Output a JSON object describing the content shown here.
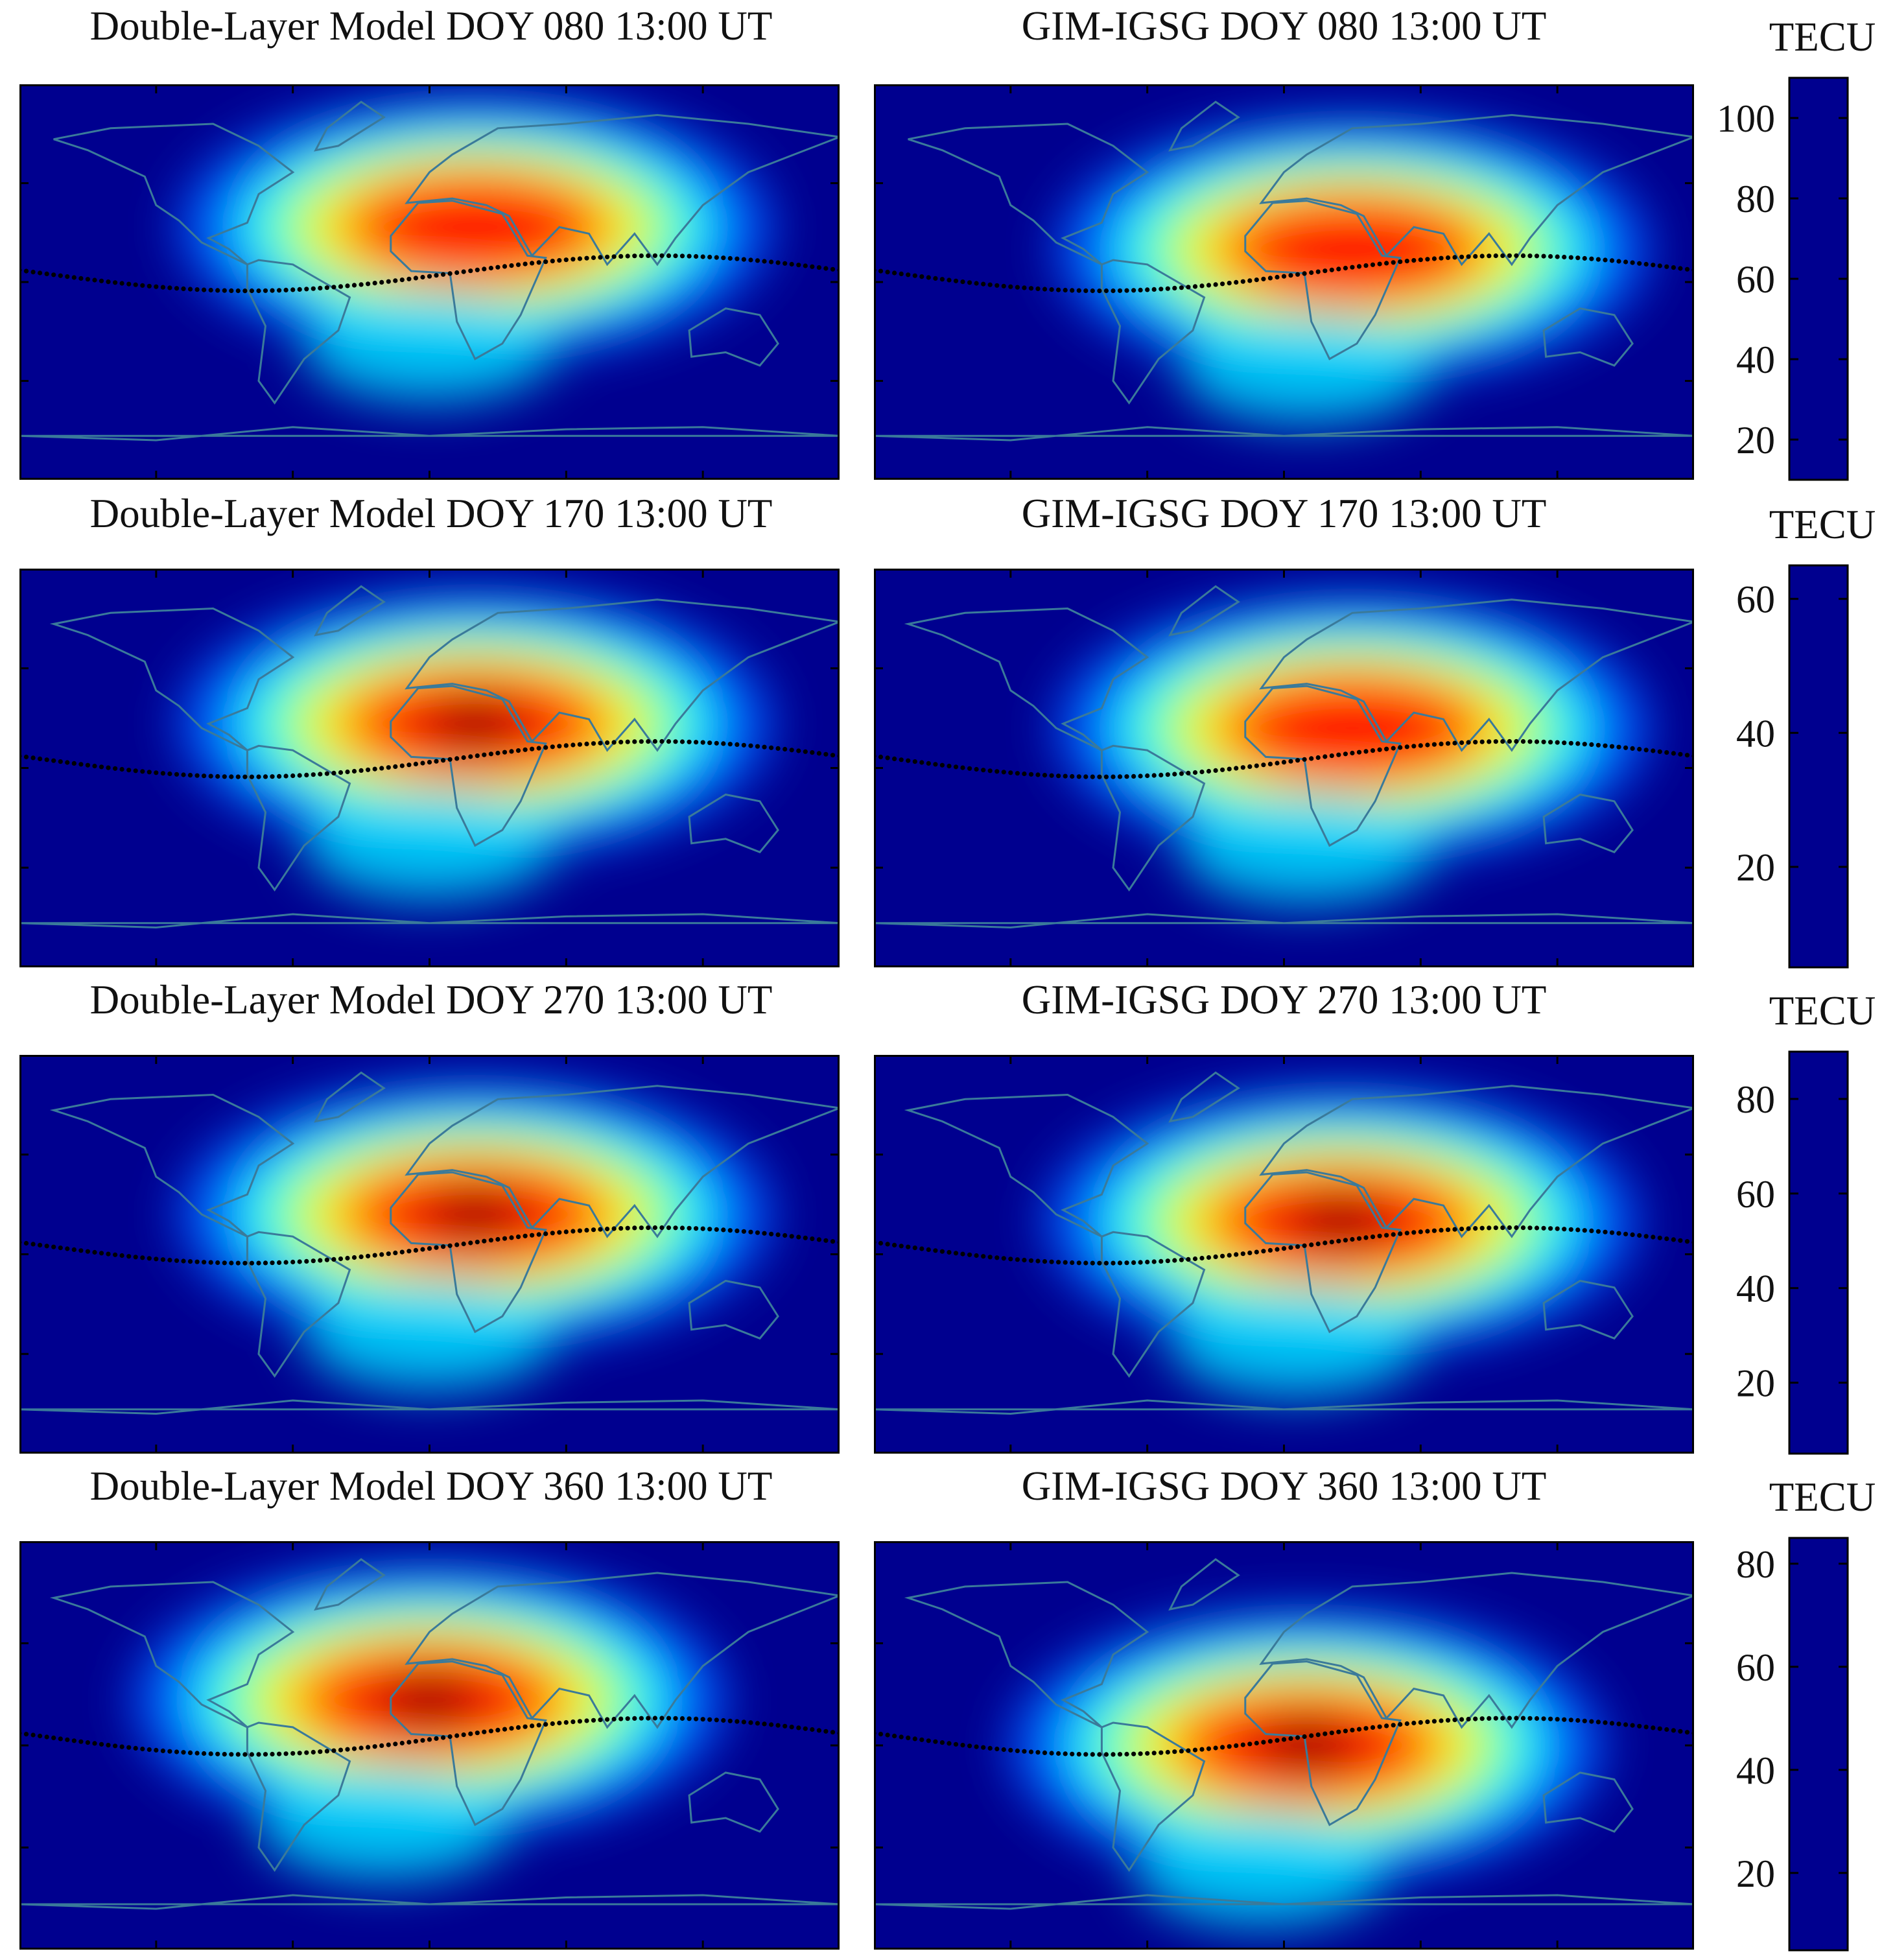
{
  "figure": {
    "colormap": [
      "#00008f",
      "#0000ff",
      "#0080ff",
      "#00ffff",
      "#80ff80",
      "#ffff00",
      "#ff8000",
      "#ff0000",
      "#800000"
    ],
    "map_background": "#00008f",
    "coastline_color": "#3a7a9a",
    "terminator_color": "#000000"
  },
  "chart_data": [
    {
      "type": "heatmap",
      "title": "Double-Layer Model DOY 080 13:00 UT",
      "colorbar_label": "TECU",
      "colorbar_ticks": [
        20,
        40,
        60,
        80,
        100
      ],
      "clim": [
        10,
        110
      ],
      "peak_value": 95,
      "peak_lon": 20,
      "peak_lat": 25
    },
    {
      "type": "heatmap",
      "title": "GIM-IGSG DOY 080 13:00 UT",
      "colorbar_label": "TECU",
      "colorbar_ticks": [
        20,
        40,
        60,
        80,
        100
      ],
      "clim": [
        10,
        110
      ],
      "peak_value": 92,
      "peak_lon": 30,
      "peak_lat": 15
    },
    {
      "type": "heatmap",
      "title": "Double-Layer Model DOY 170 13:00 UT",
      "colorbar_label": "TECU",
      "colorbar_ticks": [
        20,
        40,
        60
      ],
      "clim": [
        5,
        65
      ],
      "peak_value": 60,
      "peak_lon": 20,
      "peak_lat": 20
    },
    {
      "type": "heatmap",
      "title": "GIM-IGSG DOY 170 13:00 UT",
      "colorbar_label": "TECU",
      "colorbar_ticks": [
        20,
        40,
        60
      ],
      "clim": [
        5,
        65
      ],
      "peak_value": 57,
      "peak_lon": 30,
      "peak_lat": 18
    },
    {
      "type": "heatmap",
      "title": "Double-Layer Model DOY 270 13:00 UT",
      "colorbar_label": "TECU",
      "colorbar_ticks": [
        20,
        40,
        60,
        80
      ],
      "clim": [
        5,
        90
      ],
      "peak_value": 88,
      "peak_lon": 20,
      "peak_lat": 18
    },
    {
      "type": "heatmap",
      "title": "GIM-IGSG DOY 270 13:00 UT",
      "colorbar_label": "TECU",
      "colorbar_ticks": [
        20,
        40,
        60,
        80
      ],
      "clim": [
        5,
        90
      ],
      "peak_value": 85,
      "peak_lon": 25,
      "peak_lat": 15
    },
    {
      "type": "heatmap",
      "title": "Double-Layer Model DOY 360 13:00 UT",
      "colorbar_label": "TECU",
      "colorbar_ticks": [
        20,
        40,
        60,
        80
      ],
      "clim": [
        5,
        85
      ],
      "peak_value": 82,
      "peak_lon": 0,
      "peak_lat": 20
    },
    {
      "type": "heatmap",
      "title": "GIM-IGSG DOY 360 13:00 UT",
      "colorbar_label": "TECU",
      "colorbar_ticks": [
        20,
        40,
        60,
        80
      ],
      "clim": [
        5,
        85
      ],
      "peak_value": 78,
      "peak_lon": 10,
      "peak_lat": 0
    }
  ]
}
